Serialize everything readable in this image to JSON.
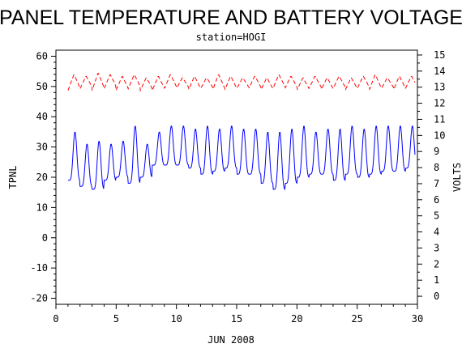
{
  "chart_data": {
    "type": "line",
    "title": "PANEL TEMPERATURE AND BATTERY VOLTAGE",
    "subtitle": "station=HOGI",
    "xlabel": "JUN 2008",
    "ylabel_left": "TPNL",
    "ylabel_right": "VOLTS",
    "xlim": [
      0,
      30
    ],
    "ylim_left": [
      -22,
      62
    ],
    "ylim_right": [
      -0.5,
      15.3
    ],
    "x_ticks": [
      0,
      5,
      10,
      15,
      20,
      25,
      30
    ],
    "y_ticks_left": [
      -20,
      -10,
      0,
      10,
      20,
      30,
      40,
      50,
      60
    ],
    "y_ticks_right": [
      0,
      1,
      2,
      3,
      4,
      5,
      6,
      7,
      8,
      9,
      10,
      11,
      12,
      13,
      14,
      15
    ],
    "x_tick_labels": [
      "0",
      "5",
      "10",
      "15",
      "20",
      "25",
      "30"
    ],
    "y_tick_labels_left": [
      "-20",
      "-10",
      "0",
      "10",
      "20",
      "30",
      "40",
      "50",
      "60"
    ],
    "y_tick_labels_right": [
      "0",
      "1",
      "2",
      "3",
      "4",
      "5",
      "6",
      "7",
      "8",
      "9",
      "10",
      "11",
      "12",
      "13",
      "14",
      "15"
    ],
    "grid": false,
    "series": [
      {
        "axis": "left",
        "color": "#0000ff",
        "style": "solid",
        "daily_min": [
          19,
          17,
          16,
          19,
          20,
          18,
          20,
          24,
          24,
          24,
          23,
          21,
          22,
          23,
          21,
          21,
          18,
          16,
          18,
          20,
          21,
          21,
          19,
          21,
          20,
          21,
          22,
          22,
          23,
          22
        ],
        "daily_max": [
          35,
          31,
          32,
          31,
          32,
          37,
          31,
          35,
          37,
          37,
          36,
          37,
          36,
          37,
          36,
          36,
          35,
          35,
          36,
          37,
          35,
          36,
          36,
          37,
          36,
          37,
          37,
          37,
          37,
          33
        ],
        "x_start": 1.0,
        "x_end": 29.8
      },
      {
        "axis": "right",
        "color": "#ff0000",
        "style": "dashed",
        "daily_min": [
          12.8,
          12.9,
          12.8,
          12.9,
          12.8,
          12.9,
          12.8,
          12.8,
          12.9,
          12.9,
          12.8,
          12.9,
          12.8,
          12.8,
          12.9,
          12.9,
          12.8,
          12.9,
          12.9,
          12.8,
          12.9,
          12.8,
          12.9,
          12.8,
          12.9,
          12.8,
          12.9,
          12.8,
          12.9,
          12.9
        ],
        "daily_max": [
          13.8,
          13.7,
          13.9,
          13.8,
          13.7,
          13.8,
          13.6,
          13.7,
          13.8,
          13.6,
          13.7,
          13.6,
          13.8,
          13.7,
          13.6,
          13.7,
          13.6,
          13.8,
          13.7,
          13.6,
          13.7,
          13.6,
          13.7,
          13.6,
          13.7,
          13.8,
          13.6,
          13.7,
          13.7,
          13.5
        ],
        "x_start": 1.0,
        "x_end": 29.8
      }
    ]
  }
}
